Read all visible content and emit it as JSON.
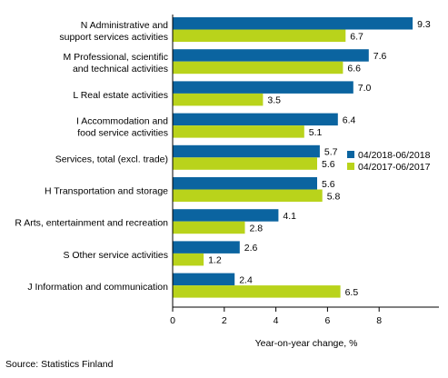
{
  "chart_data": {
    "type": "bar",
    "orientation": "horizontal",
    "title": "",
    "xlabel": "Year-on-year change, %",
    "ylabel": "",
    "xlim": [
      0,
      10
    ],
    "xticks": [
      0,
      2,
      4,
      6,
      8
    ],
    "grid": false,
    "legend_position": "right",
    "categories": [
      [
        "N Administrative and",
        "support services activities"
      ],
      [
        "M Professional, scientific",
        "and technical activities"
      ],
      [
        "L Real estate activities"
      ],
      [
        "I Accommodation and",
        "food service activities"
      ],
      [
        "Services, total (excl. trade)"
      ],
      [
        "H Transportation and storage"
      ],
      [
        "R Arts, entertainment and recreation"
      ],
      [
        "S Other service activities"
      ],
      [
        "J Information and communication"
      ]
    ],
    "series": [
      {
        "name": "04/2018-06/2018",
        "color": "#0b64a0",
        "values": [
          9.3,
          7.6,
          7.0,
          6.4,
          5.7,
          5.6,
          4.1,
          2.6,
          2.4
        ],
        "labels": [
          "9.3",
          "7.6",
          "7.0",
          "6.4",
          "5.7",
          "5.6",
          "4.1",
          "2.6",
          "2.4"
        ]
      },
      {
        "name": "04/2017-06/2017",
        "color": "#b9d31b",
        "values": [
          6.7,
          6.6,
          3.5,
          5.1,
          5.6,
          5.8,
          2.8,
          1.2,
          6.5
        ],
        "labels": [
          "6.7",
          "6.6",
          "3.5",
          "5.1",
          "5.6",
          "5.8",
          "2.8",
          "1.2",
          "6.5"
        ]
      }
    ]
  },
  "source": "Source: Statistics Finland"
}
